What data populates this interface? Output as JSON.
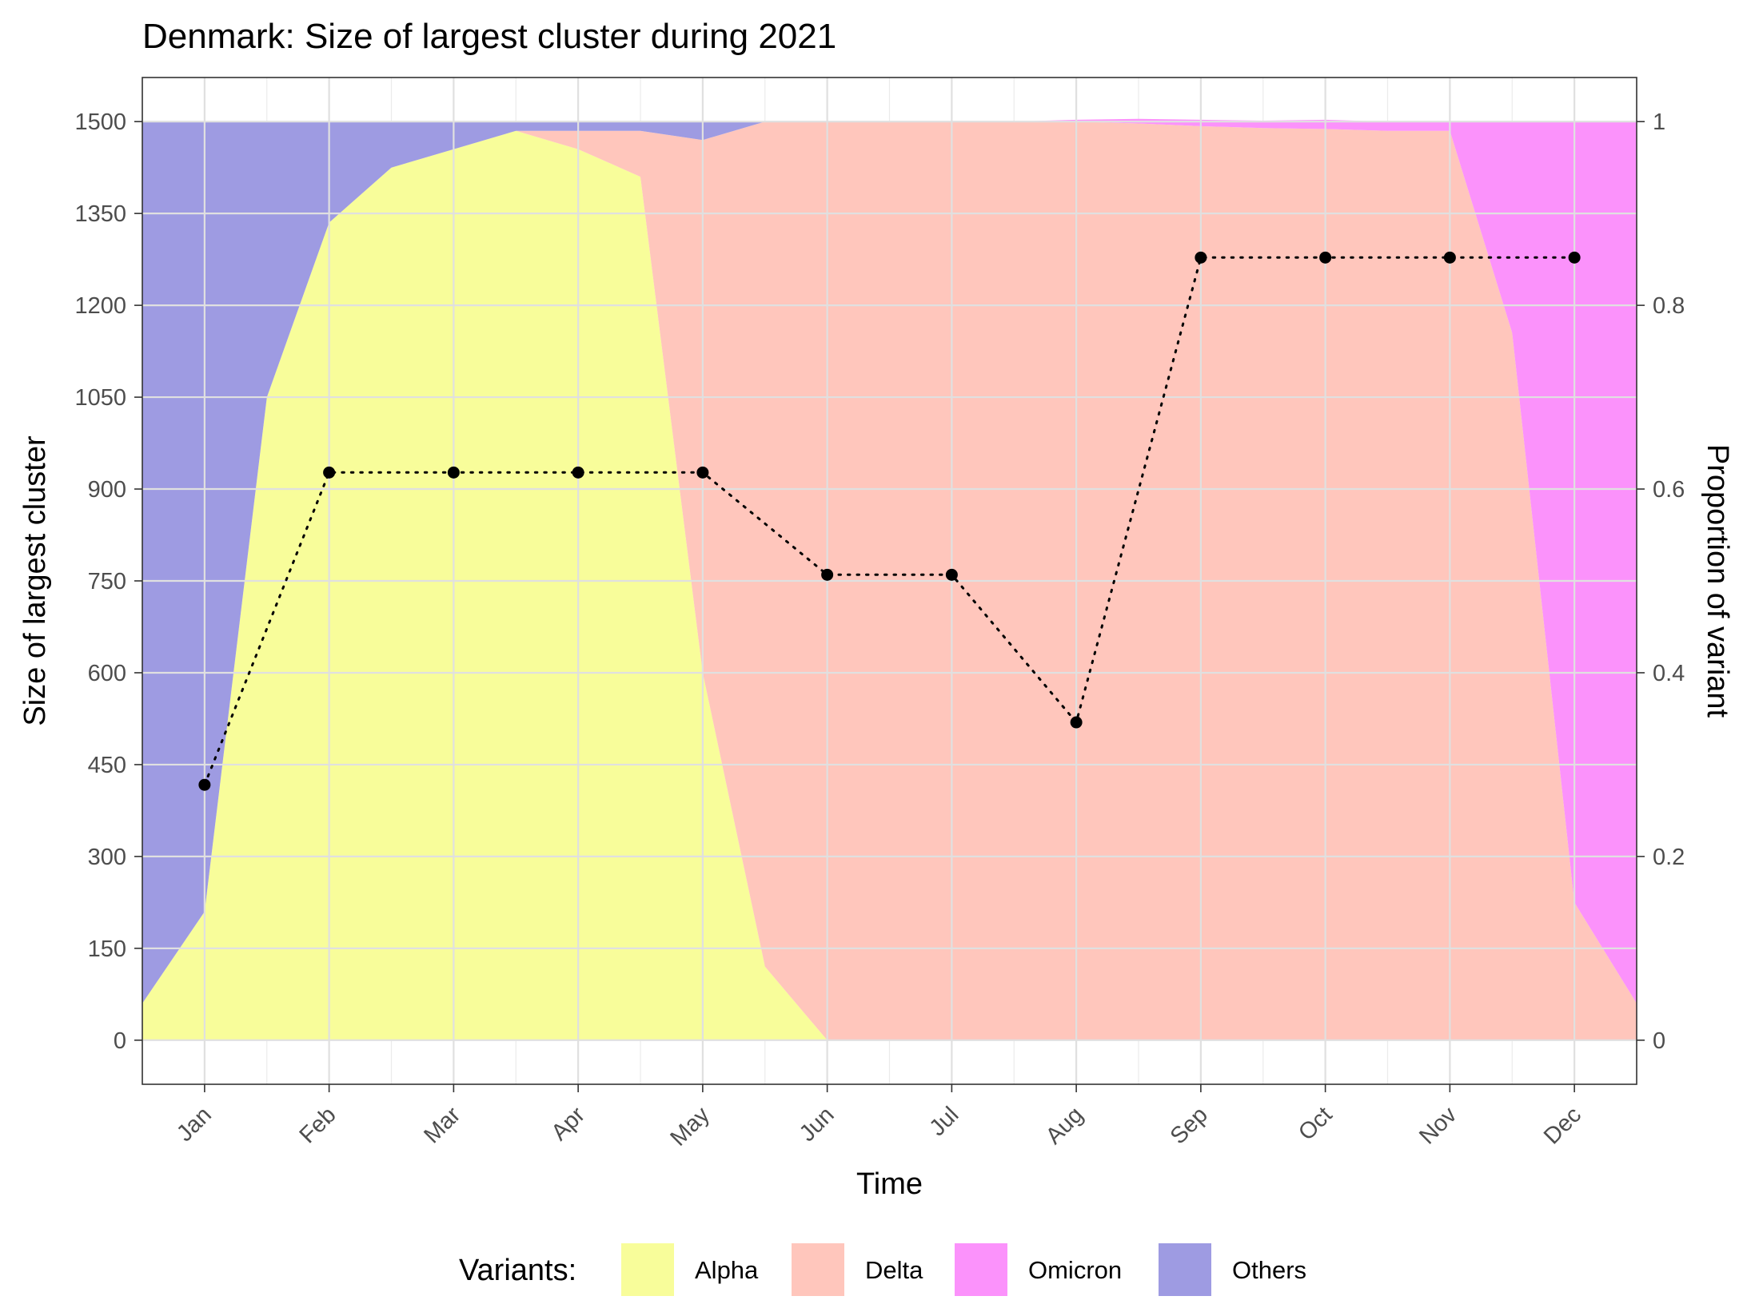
{
  "chart_data": {
    "type": "area",
    "title": "Denmark: Size of largest cluster during 2021",
    "xlabel": "Time",
    "ylabel": "Size of largest cluster",
    "y2label": "Proportion of variant",
    "xlim": [
      -0.5,
      11.5
    ],
    "ylim": [
      -72,
      1572
    ],
    "y2lim": [
      -0.048,
      1.048
    ],
    "yticks": [
      0,
      150,
      300,
      450,
      600,
      750,
      900,
      1050,
      1200,
      1350,
      1500
    ],
    "y2ticks": [
      0,
      0.2,
      0.4,
      0.6,
      0.8,
      1
    ],
    "y2tick_labels": [
      "0",
      "0.2",
      "0.4",
      "0.6",
      "0.8",
      "1"
    ],
    "x_tick_labels": [
      "Jan",
      "Feb",
      "Mar",
      "Apr",
      "May",
      "Jun",
      "Jul",
      "Aug",
      "Sep",
      "Oct",
      "Nov",
      "Dec"
    ],
    "grid": true,
    "legend": {
      "title": "Variants:",
      "placement": "bottom",
      "entries": [
        {
          "name": "Alpha",
          "color": "#f8fd9a"
        },
        {
          "name": "Delta",
          "color": "#ffc6bc"
        },
        {
          "name": "Omicron",
          "color": "#fb92fb"
        },
        {
          "name": "Others",
          "color": "#9e9be2"
        }
      ]
    },
    "area_x": [
      -0.5,
      0,
      0.5,
      1,
      1.5,
      2,
      2.5,
      3,
      3.5,
      4,
      4.5,
      5,
      5.5,
      6,
      6.5,
      7,
      7.5,
      8,
      8.5,
      9,
      9.5,
      10,
      10.5,
      11,
      11.5
    ],
    "area_series": [
      {
        "name": "Alpha",
        "color": "#f8fd9a",
        "values": [
          0.04,
          0.14,
          0.7,
          0.89,
          0.95,
          0.97,
          0.99,
          0.97,
          0.94,
          0.4,
          0.08,
          0.0,
          0.0,
          0.0,
          0.0,
          0.0,
          0.0,
          0.0,
          0.0,
          0.0,
          0.0,
          0.0,
          0.0,
          0.0,
          0.0
        ]
      },
      {
        "name": "Delta",
        "color": "#ffc6bc",
        "values": [
          0.0,
          0.0,
          0.0,
          0.0,
          0.0,
          0.0,
          0.0,
          0.02,
          0.05,
          0.58,
          0.92,
          1.0,
          1.0,
          1.0,
          1.0,
          1.0,
          0.998,
          0.995,
          0.993,
          0.992,
          0.99,
          0.99,
          0.77,
          0.15,
          0.04
        ]
      },
      {
        "name": "Omicron",
        "color": "#fb92fb",
        "values": [
          0.0,
          0.0,
          0.0,
          0.0,
          0.0,
          0.0,
          0.0,
          0.0,
          0.0,
          0.0,
          0.0,
          0.0,
          0.0,
          0.0,
          0.0,
          0.002,
          0.005,
          0.007,
          0.008,
          0.01,
          0.01,
          0.01,
          0.23,
          0.85,
          0.96
        ]
      },
      {
        "name": "Others",
        "color": "#9e9be2",
        "values": [
          0.96,
          0.86,
          0.3,
          0.11,
          0.05,
          0.03,
          0.01,
          0.01,
          0.01,
          0.02,
          0.0,
          0.0,
          0.0,
          0.0,
          0.0,
          0.0,
          0.0,
          0.0,
          0.0,
          0.0,
          0.0,
          0.0,
          0.0,
          0.0,
          0.0
        ]
      }
    ],
    "line_series": {
      "name": "Size of largest cluster",
      "style": "dotted",
      "x": [
        0,
        1,
        2,
        3,
        4,
        5,
        6,
        7,
        8,
        9,
        10,
        11
      ],
      "values": [
        417,
        927,
        927,
        927,
        927,
        760,
        760,
        519,
        1278,
        1278,
        1278,
        1278
      ]
    }
  }
}
